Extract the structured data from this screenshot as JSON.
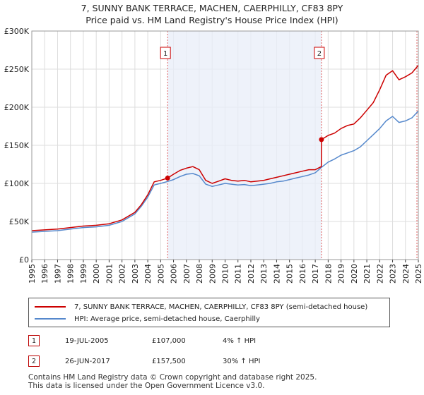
{
  "header": {
    "title_line1": "7, SUNNY BANK TERRACE, MACHEN, CAERPHILLY, CF83 8PY",
    "title_line2": "Price paid vs. HM Land Registry's House Price Index (HPI)"
  },
  "chart_data": {
    "type": "line",
    "title": "Price paid vs. HM Land Registry's House Price Index (HPI)",
    "xlabel": "",
    "ylabel": "",
    "xlim": [
      1995,
      2025
    ],
    "ylim": [
      0,
      300000
    ],
    "y_ticks": [
      0,
      50000,
      100000,
      150000,
      200000,
      250000,
      300000
    ],
    "y_tick_labels": [
      "£0",
      "£50K",
      "£100K",
      "£150K",
      "£200K",
      "£250K",
      "£300K"
    ],
    "x_ticks": [
      1995,
      1996,
      1997,
      1998,
      1999,
      2000,
      2001,
      2002,
      2003,
      2004,
      2005,
      2006,
      2007,
      2008,
      2009,
      2010,
      2011,
      2012,
      2013,
      2014,
      2015,
      2016,
      2017,
      2018,
      2019,
      2020,
      2021,
      2022,
      2023,
      2024,
      2025
    ],
    "x_tick_labels": [
      "1995",
      "1996",
      "1997",
      "1998",
      "1999",
      "2000",
      "2001",
      "2002",
      "2003",
      "2004",
      "2005",
      "2006",
      "2007",
      "2008",
      "2009",
      "2010",
      "2011",
      "2012",
      "2013",
      "2014",
      "2015",
      "2016",
      "2017",
      "2018",
      "2019",
      "2020",
      "2021",
      "2022",
      "2023",
      "2024",
      "2025"
    ],
    "grid": true,
    "shaded_region": [
      2005.54,
      2017.48
    ],
    "series": [
      {
        "name": "7, SUNNY BANK TERRACE, MACHEN, CAERPHILLY, CF83 8PY (semi-detached house)",
        "color": "#cc0000",
        "x": [
          1995,
          1996,
          1997,
          1998,
          1999,
          2000,
          2001,
          2002,
          2003,
          2003.5,
          2004,
          2004.5,
          2005,
          2005.54,
          2006,
          2006.5,
          2007,
          2007.5,
          2008,
          2008.5,
          2009,
          2009.5,
          2010,
          2010.5,
          2011,
          2011.5,
          2012,
          2012.5,
          2013,
          2013.5,
          2014,
          2014.5,
          2015,
          2015.5,
          2016,
          2016.5,
          2017,
          2017.47,
          2017.48,
          2018,
          2018.5,
          2019,
          2019.5,
          2020,
          2020.5,
          2021,
          2021.5,
          2022,
          2022.5,
          2023,
          2023.5,
          2024,
          2024.5,
          2025
        ],
        "y": [
          38000,
          39000,
          40000,
          42000,
          44000,
          45000,
          47000,
          52000,
          62000,
          72000,
          85000,
          102000,
          104000,
          107000,
          112000,
          117000,
          120000,
          122000,
          118000,
          104000,
          100000,
          103000,
          106000,
          104000,
          103000,
          104000,
          102000,
          103000,
          104000,
          106000,
          108000,
          110000,
          112000,
          114000,
          116000,
          118000,
          118000,
          122000,
          157500,
          163000,
          166000,
          172000,
          176000,
          178000,
          186000,
          196000,
          206000,
          223000,
          242000,
          248000,
          236000,
          240000,
          245000,
          255000
        ]
      },
      {
        "name": "HPI: Average price, semi-detached house, Caerphilly",
        "color": "#5588cc",
        "x": [
          1995,
          1996,
          1997,
          1998,
          1999,
          2000,
          2001,
          2002,
          2003,
          2003.5,
          2004,
          2004.5,
          2005,
          2005.54,
          2006,
          2006.5,
          2007,
          2007.5,
          2008,
          2008.5,
          2009,
          2009.5,
          2010,
          2010.5,
          2011,
          2011.5,
          2012,
          2012.5,
          2013,
          2013.5,
          2014,
          2014.5,
          2015,
          2015.5,
          2016,
          2016.5,
          2017,
          2017.48,
          2018,
          2018.5,
          2019,
          2019.5,
          2020,
          2020.5,
          2021,
          2021.5,
          2022,
          2022.5,
          2023,
          2023.5,
          2024,
          2024.5,
          2025
        ],
        "y": [
          36000,
          37000,
          38000,
          40000,
          42000,
          43000,
          45000,
          50000,
          60000,
          70000,
          82000,
          98000,
          100000,
          102500,
          105000,
          109000,
          112000,
          113000,
          110000,
          99000,
          96000,
          98000,
          100000,
          99000,
          98000,
          98500,
          97000,
          98000,
          99000,
          100000,
          102000,
          103000,
          105000,
          107000,
          109000,
          111000,
          114000,
          121000,
          128000,
          132000,
          137000,
          140000,
          143000,
          148000,
          156000,
          164000,
          172000,
          182000,
          188000,
          180000,
          182000,
          186000,
          195000
        ]
      }
    ],
    "markers": [
      {
        "label": "1",
        "x": 2005.54,
        "y": 107000
      },
      {
        "label": "2",
        "x": 2017.48,
        "y": 157500
      }
    ],
    "colors": {
      "red_line": "#cc0000",
      "blue_line": "#5588cc",
      "shade": "#e8eef8",
      "vline": "#e06060",
      "grid": "#dddddd"
    }
  },
  "legend": {
    "items": [
      {
        "label": "7, SUNNY BANK TERRACE, MACHEN, CAERPHILLY, CF83 8PY (semi-detached house)",
        "color": "#cc0000"
      },
      {
        "label": "HPI: Average price, semi-detached house, Caerphilly",
        "color": "#5588cc"
      }
    ]
  },
  "sales": [
    {
      "num": "1",
      "date": "19-JUL-2005",
      "price": "£107,000",
      "hpi": "4% ↑ HPI"
    },
    {
      "num": "2",
      "date": "26-JUN-2017",
      "price": "£157,500",
      "hpi": "30% ↑ HPI"
    }
  ],
  "footer": {
    "line1": "Contains HM Land Registry data © Crown copyright and database right 2025.",
    "line2": "This data is licensed under the Open Government Licence v3.0."
  }
}
